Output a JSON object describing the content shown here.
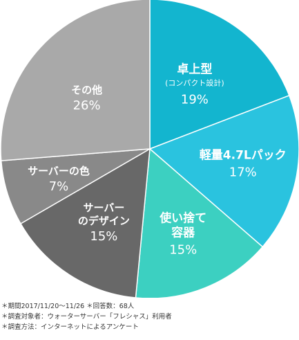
{
  "chart_data": {
    "type": "pie",
    "start_angle_deg": 0,
    "direction": "clockwise",
    "slices": [
      {
        "label": [
          "卓上型"
        ],
        "sublabel": "(コンパクト設計)",
        "value": 19,
        "value_label": "19%",
        "color": "#13b5cf"
      },
      {
        "label": [
          "軽量4.7Lパック"
        ],
        "value": 17,
        "value_label": "17%",
        "color": "#2ac3df"
      },
      {
        "label": [
          "使い捨て",
          "容器"
        ],
        "value": 15,
        "value_label": "15%",
        "color": "#3cd0c1"
      },
      {
        "label": [
          "サーバー",
          "のデザイン"
        ],
        "value": 15,
        "value_label": "15%",
        "color": "#686868"
      },
      {
        "label": [
          "サーバーの色"
        ],
        "value": 7,
        "value_label": "7%",
        "color": "#898989"
      },
      {
        "label": [
          "その他"
        ],
        "value": 26,
        "value_label": "26%",
        "color": "#a9a9a9"
      }
    ]
  },
  "notes": [
    "＊期間2017/11/20～11/26 ＊回答数：68人",
    "＊調査対象者：ウォーターサーバー「フレシャス」利用者",
    "＊調査方法：インターネットによるアンケート"
  ]
}
